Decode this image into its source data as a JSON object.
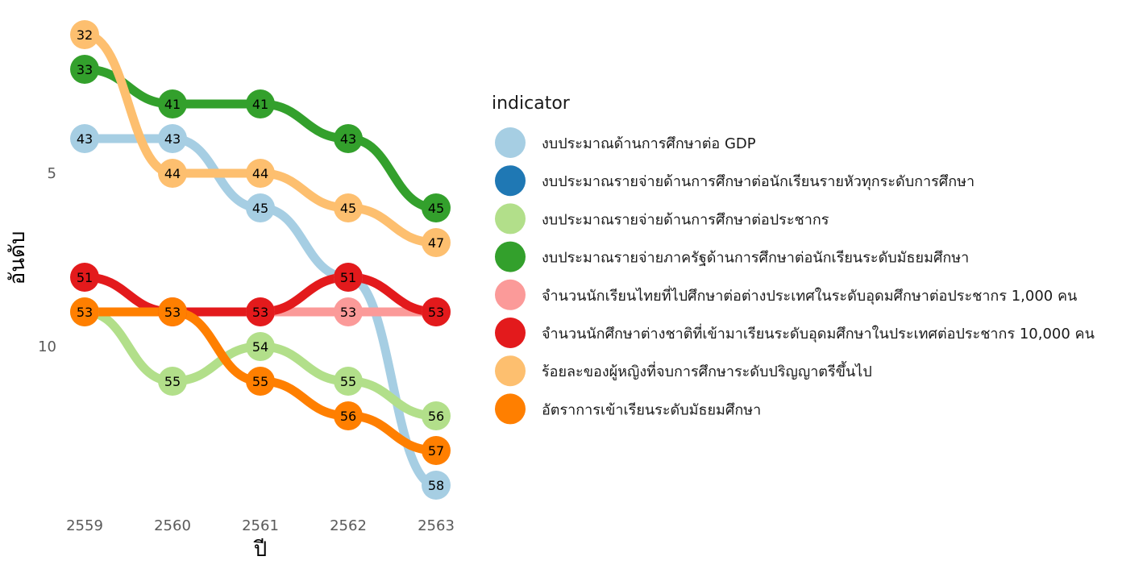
{
  "chart_data": {
    "type": "bump",
    "xlabel": "ปี",
    "ylabel": "อันดับ",
    "x": [
      "2559",
      "2560",
      "2561",
      "2562",
      "2563"
    ],
    "y_ticks": [
      5,
      10
    ],
    "y_range": [
      1,
      14
    ],
    "y_reversed": true,
    "grid": false,
    "legend": {
      "title": "indicator",
      "placement": "right"
    },
    "series": [
      {
        "name": "งบประมาณด้านการศึกษาต่อ GDP",
        "color": "#a6cee3",
        "ranks": [
          4,
          4,
          6,
          8,
          14
        ],
        "labels": [
          43,
          43,
          45,
          51,
          58
        ]
      },
      {
        "name": "งบประมาณรายจ่ายด้านการศึกษาต่อนักเรียนรายหัวทุกระดับการศึกษา",
        "color": "#1f78b4",
        "ranks": [],
        "labels": []
      },
      {
        "name": "งบประมาณรายจ่ายด้านการศึกษาต่อประชากร",
        "color": "#b2df8a",
        "ranks": [
          9,
          11,
          10,
          11,
          12
        ],
        "labels": [
          53,
          55,
          54,
          55,
          56
        ]
      },
      {
        "name": "งบประมาณรายจ่ายภาครัฐด้านการศึกษาต่อนักเรียนระดับมัธยมศึกษา",
        "color": "#33a02c",
        "ranks": [
          2,
          3,
          3,
          4,
          6
        ],
        "labels": [
          33,
          41,
          41,
          43,
          45
        ]
      },
      {
        "name": "จำนวนนักเรียนไทยที่ไปศึกษาต่อต่างประเทศในระดับอุดมศึกษาต่อประชากร 1,000 คน",
        "color": "#fb9a99",
        "ranks": [
          null,
          null,
          9,
          9,
          9
        ],
        "labels": [
          null,
          null,
          53,
          53,
          53
        ]
      },
      {
        "name": "จำนวนนักศึกษาต่างชาติที่เข้ามาเรียนระดับอุดมศึกษาในประเทศต่อประชากร 10,000 คน",
        "color": "#e31a1c",
        "ranks": [
          8,
          9,
          9,
          8,
          9
        ],
        "labels": [
          51,
          53,
          53,
          51,
          53
        ]
      },
      {
        "name": "ร้อยละของผู้หญิงที่จบการศึกษาระดับปริญญาตรีขึ้นไป",
        "color": "#fdbf6f",
        "ranks": [
          1,
          5,
          5,
          6,
          7
        ],
        "labels": [
          32,
          44,
          44,
          45,
          47
        ]
      },
      {
        "name": "อัตราการเข้าเรียนระดับมัธยมศึกษา",
        "color": "#ff7f00",
        "ranks": [
          9,
          9,
          11,
          12,
          13
        ],
        "labels": [
          53,
          53,
          55,
          56,
          57
        ]
      }
    ]
  }
}
